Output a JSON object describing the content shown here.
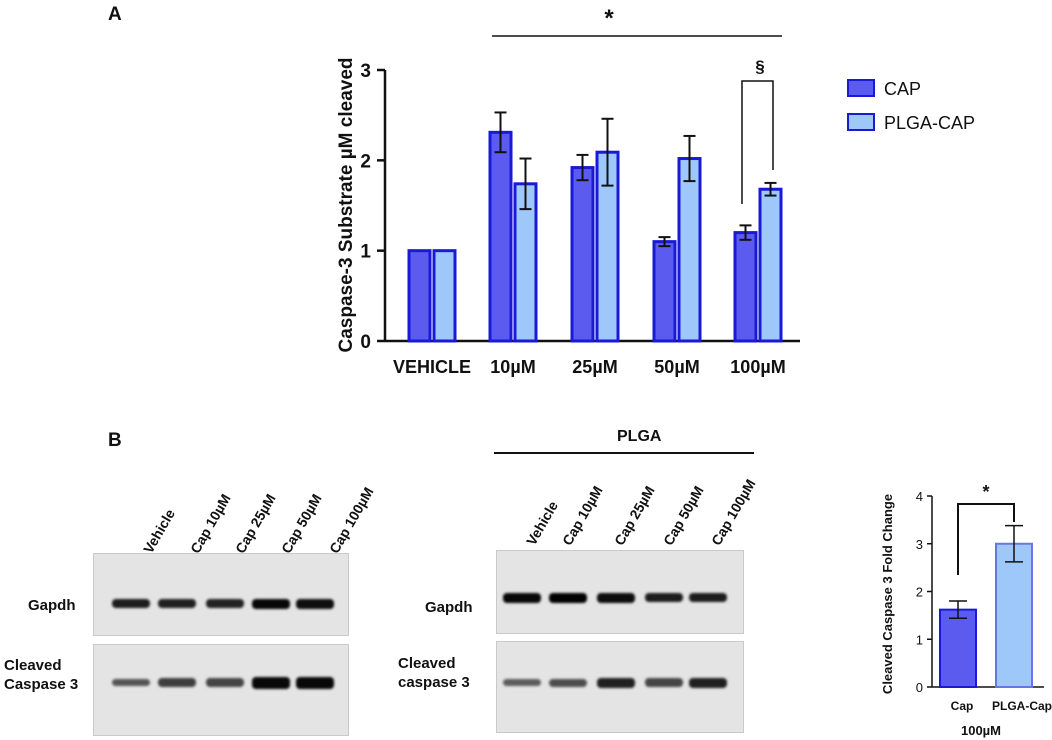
{
  "panel_a_label": "A",
  "panel_b_label": "B",
  "colors": {
    "cap": "#5b5bf0",
    "plga_cap": "#9fc8fa",
    "edge": "#1a1ad6",
    "cap_light_edge": "#6b73e6"
  },
  "chart_data": [
    {
      "type": "bar",
      "ylabel": "Caspase-3  Substrate µM cleaved",
      "ylim": [
        0,
        3
      ],
      "yticks": [
        "0",
        "1",
        "2",
        "3"
      ],
      "categories": [
        "VEHICLE",
        "10µM",
        "25µM",
        "50µM",
        "100µM"
      ],
      "series": [
        {
          "name": "CAP",
          "values": [
            1.0,
            2.31,
            1.92,
            1.1,
            1.2
          ],
          "errors": [
            0,
            0.22,
            0.14,
            0.05,
            0.08
          ]
        },
        {
          "name": "PLGA-CAP",
          "values": [
            1.0,
            1.74,
            2.09,
            2.02,
            1.68
          ],
          "errors": [
            0,
            0.28,
            0.37,
            0.25,
            0.07
          ]
        }
      ],
      "annotations": {
        "overall": "*",
        "pair": "§"
      },
      "legend_position": "right"
    },
    {
      "type": "bar",
      "ylabel": "Cleaved Caspase 3 Fold Change",
      "xlabel": "100µM",
      "ylim": [
        0,
        4
      ],
      "yticks": [
        "0",
        "1",
        "2",
        "3",
        "4"
      ],
      "categories": [
        "Cap",
        "PLGA-Cap"
      ],
      "values": [
        1.62,
        3.0
      ],
      "errors": [
        0.18,
        0.38
      ],
      "annotations": {
        "pair": "*"
      }
    }
  ],
  "blot_left": {
    "lanes": [
      "Vehicle",
      "Cap 10µM",
      "Cap 25µM",
      "Cap 50µM",
      "Cap 100µM"
    ],
    "row1_label": "Gapdh",
    "row2_label": "Cleaved\nCaspase 3",
    "gapdh_intensity": [
      0.8,
      0.78,
      0.76,
      0.95,
      0.9
    ],
    "casp_intensity": [
      0.45,
      0.6,
      0.55,
      0.95,
      0.95
    ]
  },
  "blot_right": {
    "header": "PLGA",
    "lanes": [
      "Vehicle",
      "Cap 10µM",
      "Cap 25µM",
      "Cap 50µM",
      "Cap 100µM"
    ],
    "row1_label": "Gapdh",
    "row2_label": "Cleaved\ncaspase 3",
    "gapdh_intensity": [
      0.95,
      1.0,
      0.92,
      0.8,
      0.8
    ],
    "casp_intensity": [
      0.4,
      0.5,
      0.8,
      0.55,
      0.8
    ]
  }
}
